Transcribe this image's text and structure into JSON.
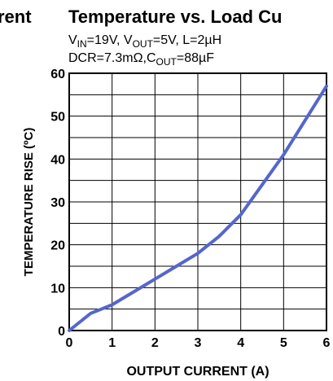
{
  "chart_data": {
    "type": "line",
    "prev_title": "rent",
    "title": "Temperature vs. Load Cu",
    "subtitle": [
      [
        "V",
        "IN",
        "=19V, V",
        "OUT",
        "=5V,  L=2µH"
      ],
      [
        "DCR=7.3mΩ,C",
        "OUT",
        "=88µF"
      ]
    ],
    "xlabel": "OUTPUT CURRENT (A)",
    "ylabel": "TEMPERATURE RISE (ºC)",
    "x": [
      0,
      0.5,
      1,
      1.5,
      2,
      2.5,
      3,
      3.5,
      4,
      4.5,
      5,
      5.5,
      6
    ],
    "series": [
      {
        "color": "#5566cc",
        "values": [
          0,
          4,
          6,
          9,
          12,
          15,
          18,
          22,
          27,
          34,
          41,
          49,
          57
        ]
      }
    ],
    "xlim": [
      0,
      6
    ],
    "xticks": [
      0,
      1,
      2,
      3,
      4,
      5,
      6
    ],
    "ylim": [
      0,
      60
    ],
    "yticks": [
      0,
      10,
      20,
      30,
      40,
      50,
      60
    ],
    "yminor": [
      5,
      15,
      25,
      35,
      45,
      55
    ],
    "grid": true
  }
}
